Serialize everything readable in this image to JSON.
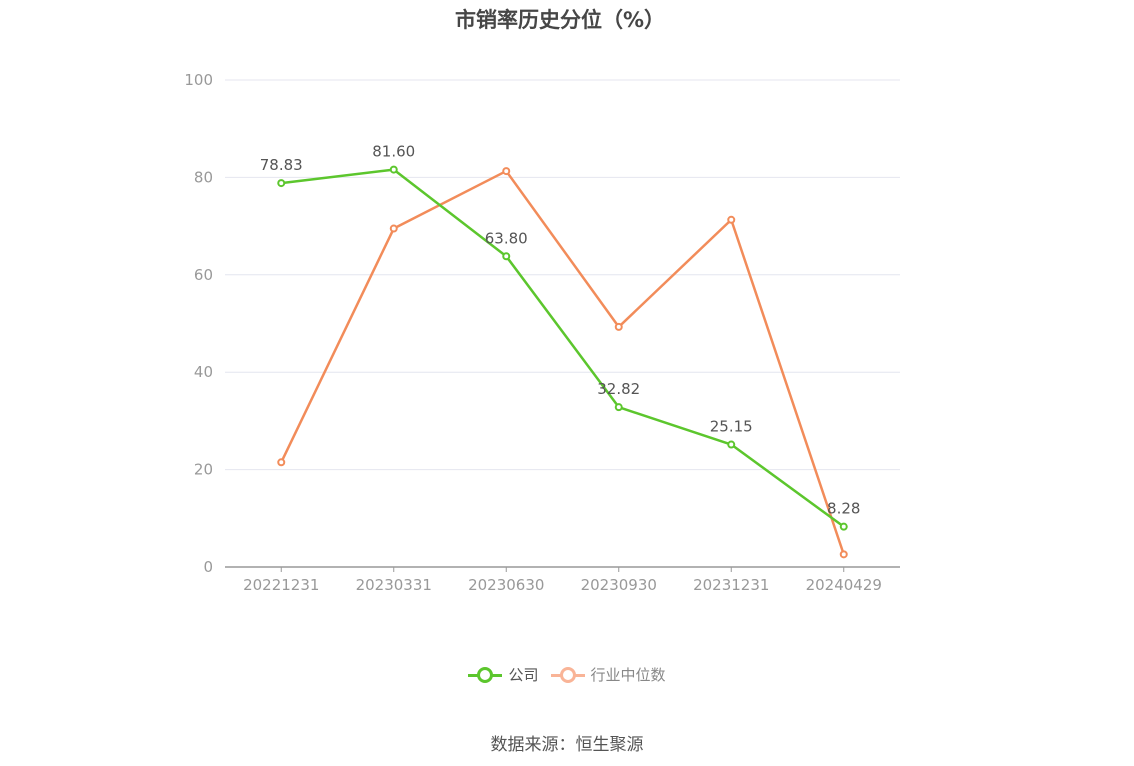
{
  "chart_data": {
    "type": "line",
    "title": "市销率历史分位（%）",
    "categories": [
      "20221231",
      "20230331",
      "20230630",
      "20230930",
      "20231231",
      "20240429"
    ],
    "ylim": [
      0,
      100
    ],
    "yticks": [
      0,
      20,
      40,
      60,
      80,
      100
    ],
    "grid": true,
    "legend_position": "bottom",
    "series": [
      {
        "name": "公司",
        "color": "#5cc62d",
        "values": [
          78.83,
          81.6,
          63.8,
          32.82,
          25.15,
          8.28
        ],
        "labels": [
          "78.83",
          "81.60",
          "63.80",
          "32.82",
          "25.15",
          "8.28"
        ]
      },
      {
        "name": "行业中位数",
        "color": "#f28c5a",
        "values": [
          21.5,
          69.5,
          81.3,
          49.3,
          71.3,
          2.6
        ]
      }
    ]
  },
  "legend": {
    "company_label": "公司",
    "industry_label": "行业中位数",
    "company_color": "#5cc62d",
    "industry_color": "#f9b497"
  },
  "footer": {
    "source": "数据来源：恒生聚源"
  }
}
